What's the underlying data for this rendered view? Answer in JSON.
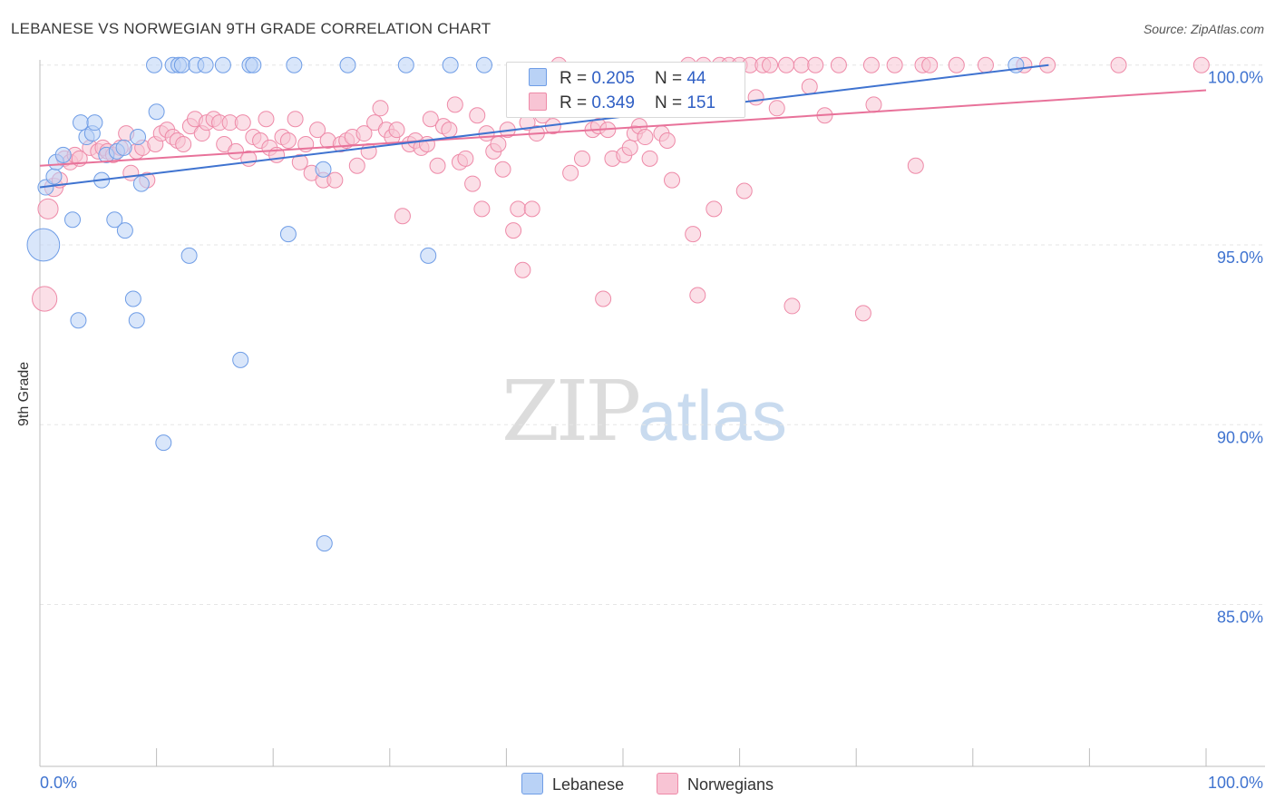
{
  "title": "LEBANESE VS NORWEGIAN 9TH GRADE CORRELATION CHART",
  "source": "Source: ZipAtlas.com",
  "watermark": {
    "part1": "ZIP",
    "part2": "atlas"
  },
  "colors": {
    "lebanese_fill": "#b9d2f6",
    "lebanese_stroke": "#6f9de6",
    "lebanese_line": "#3f73d0",
    "norwegian_fill": "#f8c4d4",
    "norwegian_stroke": "#ee8aa8",
    "norwegian_line": "#e8729a",
    "tick_label": "#3f73d0",
    "grid": "#e6e6e6"
  },
  "legend_top": {
    "rows": [
      {
        "r_label": "R =",
        "r_value": "0.205",
        "n_label": "N =",
        "n_value": "44"
      },
      {
        "r_label": "R =",
        "r_value": "0.349",
        "n_label": "N =",
        "n_value": "151"
      }
    ]
  },
  "legend_bottom": {
    "items": [
      "Lebanese",
      "Norwegians"
    ]
  },
  "chart_data": {
    "type": "scatter",
    "title": "LEBANESE VS NORWEGIAN 9TH GRADE CORRELATION CHART",
    "xlabel": "",
    "ylabel": "9th Grade",
    "xlim": [
      0,
      100
    ],
    "ylim": [
      80.5,
      100.8
    ],
    "x_tick_labels": [
      {
        "value": 0,
        "label": "0.0%"
      },
      {
        "value": 100,
        "label": "100.0%"
      }
    ],
    "y_tick_labels": [
      {
        "value": 100,
        "label": "100.0%"
      },
      {
        "value": 95,
        "label": "95.0%"
      },
      {
        "value": 90,
        "label": "90.0%"
      },
      {
        "value": 85,
        "label": "85.0%"
      }
    ],
    "grid": true,
    "legend_position": "top-center",
    "series": [
      {
        "name": "Lebanese",
        "r": 0.205,
        "n": 44,
        "trend": {
          "x": [
            0,
            86.5
          ],
          "y": [
            96.6,
            100.0
          ]
        },
        "points": [
          [
            0.3,
            95.0,
            2.1
          ],
          [
            0.5,
            96.6,
            1
          ],
          [
            1.2,
            96.9,
            1
          ],
          [
            1.4,
            97.3,
            1
          ],
          [
            2.0,
            97.5,
            1
          ],
          [
            2.8,
            95.7,
            1
          ],
          [
            3.3,
            92.9,
            1
          ],
          [
            3.5,
            98.4,
            1
          ],
          [
            4.0,
            98.0,
            1
          ],
          [
            4.5,
            98.1,
            1
          ],
          [
            4.7,
            98.4,
            1
          ],
          [
            5.3,
            96.8,
            1
          ],
          [
            5.7,
            97.5,
            1
          ],
          [
            6.4,
            95.7,
            1
          ],
          [
            6.6,
            97.6,
            1
          ],
          [
            7.2,
            97.7,
            1
          ],
          [
            7.3,
            95.4,
            1
          ],
          [
            8.0,
            93.5,
            1
          ],
          [
            8.3,
            92.9,
            1
          ],
          [
            8.4,
            98.0,
            1
          ],
          [
            8.7,
            96.7,
            1
          ],
          [
            9.8,
            100.0,
            1
          ],
          [
            10.0,
            98.7,
            1
          ],
          [
            10.6,
            89.5,
            1
          ],
          [
            11.4,
            100.0,
            1
          ],
          [
            11.9,
            100.0,
            1
          ],
          [
            12.2,
            100.0,
            1
          ],
          [
            12.8,
            94.7,
            1
          ],
          [
            13.4,
            100.0,
            1
          ],
          [
            14.2,
            100.0,
            1
          ],
          [
            15.7,
            100.0,
            1
          ],
          [
            17.2,
            91.8,
            1
          ],
          [
            18.0,
            100.0,
            1
          ],
          [
            18.3,
            100.0,
            1
          ],
          [
            21.3,
            95.3,
            1
          ],
          [
            21.8,
            100.0,
            1
          ],
          [
            24.3,
            97.1,
            1
          ],
          [
            24.4,
            86.7,
            1
          ],
          [
            26.4,
            100.0,
            1
          ],
          [
            31.4,
            100.0,
            1
          ],
          [
            33.3,
            94.7,
            1
          ],
          [
            35.2,
            100.0,
            1
          ],
          [
            38.1,
            100.0,
            1
          ],
          [
            83.7,
            100.0,
            1
          ]
        ]
      },
      {
        "name": "Norwegians",
        "r": 0.349,
        "n": 151,
        "trend": {
          "x": [
            0,
            100
          ],
          "y": [
            97.2,
            99.3
          ]
        },
        "points": [
          [
            0.4,
            93.5,
            1.6
          ],
          [
            0.7,
            96.0,
            1.3
          ],
          [
            1.2,
            96.6,
            1.2
          ],
          [
            1.7,
            96.8,
            1
          ],
          [
            2.1,
            97.4,
            1
          ],
          [
            2.6,
            97.3,
            1
          ],
          [
            3.0,
            97.5,
            1
          ],
          [
            3.4,
            97.4,
            1
          ],
          [
            4.3,
            97.7,
            1
          ],
          [
            5.0,
            97.6,
            1
          ],
          [
            5.4,
            97.7,
            1
          ],
          [
            5.8,
            97.6,
            1
          ],
          [
            6.3,
            97.5,
            1
          ],
          [
            6.9,
            97.7,
            1
          ],
          [
            7.4,
            98.1,
            1
          ],
          [
            7.8,
            97.0,
            1
          ],
          [
            8.3,
            97.6,
            1
          ],
          [
            8.8,
            97.7,
            1
          ],
          [
            9.2,
            96.8,
            1
          ],
          [
            9.9,
            97.8,
            1
          ],
          [
            10.4,
            98.1,
            1
          ],
          [
            10.9,
            98.2,
            1
          ],
          [
            11.4,
            98.0,
            1
          ],
          [
            11.8,
            97.9,
            1
          ],
          [
            12.3,
            97.8,
            1
          ],
          [
            12.9,
            98.3,
            1
          ],
          [
            13.3,
            98.5,
            1
          ],
          [
            13.9,
            98.1,
            1
          ],
          [
            14.3,
            98.4,
            1
          ],
          [
            14.9,
            98.5,
            1
          ],
          [
            15.4,
            98.4,
            1
          ],
          [
            15.8,
            97.8,
            1
          ],
          [
            16.3,
            98.4,
            1
          ],
          [
            16.8,
            97.6,
            1
          ],
          [
            17.4,
            98.4,
            1
          ],
          [
            17.9,
            97.4,
            1
          ],
          [
            18.3,
            98.0,
            1
          ],
          [
            18.9,
            97.9,
            1
          ],
          [
            19.4,
            98.5,
            1
          ],
          [
            19.7,
            97.7,
            1
          ],
          [
            20.3,
            97.5,
            1
          ],
          [
            20.8,
            98.0,
            1
          ],
          [
            21.3,
            97.9,
            1
          ],
          [
            21.9,
            98.5,
            1
          ],
          [
            22.3,
            97.3,
            1
          ],
          [
            22.8,
            97.8,
            1
          ],
          [
            23.3,
            97.0,
            1
          ],
          [
            23.8,
            98.2,
            1
          ],
          [
            24.3,
            96.8,
            1
          ],
          [
            24.7,
            97.9,
            1
          ],
          [
            25.3,
            96.8,
            1
          ],
          [
            25.8,
            97.8,
            1
          ],
          [
            26.3,
            97.9,
            1
          ],
          [
            26.8,
            98.0,
            1
          ],
          [
            27.2,
            97.2,
            1
          ],
          [
            27.8,
            98.1,
            1
          ],
          [
            28.2,
            97.6,
            1
          ],
          [
            28.7,
            98.4,
            1
          ],
          [
            29.2,
            98.8,
            1
          ],
          [
            29.7,
            98.2,
            1
          ],
          [
            30.2,
            98.0,
            1
          ],
          [
            30.6,
            98.2,
            1
          ],
          [
            31.1,
            95.8,
            1
          ],
          [
            31.7,
            97.8,
            1
          ],
          [
            32.2,
            97.9,
            1
          ],
          [
            32.7,
            97.7,
            1
          ],
          [
            33.2,
            97.8,
            1
          ],
          [
            33.5,
            98.5,
            1
          ],
          [
            34.1,
            97.2,
            1
          ],
          [
            34.6,
            98.3,
            1
          ],
          [
            35.1,
            98.2,
            1
          ],
          [
            35.6,
            98.9,
            1
          ],
          [
            36.0,
            97.3,
            1
          ],
          [
            36.5,
            97.4,
            1
          ],
          [
            37.1,
            96.7,
            1
          ],
          [
            37.5,
            98.6,
            1
          ],
          [
            37.9,
            96.0,
            1
          ],
          [
            38.3,
            98.1,
            1
          ],
          [
            38.9,
            97.6,
            1
          ],
          [
            39.3,
            97.8,
            1
          ],
          [
            39.7,
            97.1,
            1
          ],
          [
            40.1,
            98.2,
            1
          ],
          [
            40.6,
            95.4,
            1
          ],
          [
            41.0,
            96.0,
            1
          ],
          [
            41.4,
            94.3,
            1
          ],
          [
            41.8,
            98.4,
            1
          ],
          [
            42.2,
            96.0,
            1
          ],
          [
            42.6,
            98.1,
            1
          ],
          [
            43.1,
            98.6,
            1
          ],
          [
            43.5,
            98.9,
            1
          ],
          [
            44.0,
            98.3,
            1
          ],
          [
            44.5,
            100.0,
            1
          ],
          [
            45.0,
            99.1,
            1
          ],
          [
            45.5,
            97.0,
            1
          ],
          [
            45.9,
            99.4,
            1
          ],
          [
            46.5,
            97.4,
            1
          ],
          [
            46.9,
            98.8,
            1
          ],
          [
            47.4,
            98.2,
            1
          ],
          [
            47.9,
            98.3,
            1
          ],
          [
            48.3,
            93.5,
            1
          ],
          [
            48.7,
            98.2,
            1
          ],
          [
            49.1,
            97.4,
            1
          ],
          [
            49.6,
            99.3,
            1
          ],
          [
            50.1,
            97.5,
            1
          ],
          [
            50.6,
            97.7,
            1
          ],
          [
            51.0,
            98.1,
            1
          ],
          [
            51.4,
            98.3,
            1
          ],
          [
            51.9,
            98.0,
            1
          ],
          [
            52.3,
            97.4,
            1
          ],
          [
            52.8,
            99.5,
            1
          ],
          [
            53.3,
            98.1,
            1
          ],
          [
            53.8,
            97.9,
            1
          ],
          [
            54.2,
            96.8,
            1
          ],
          [
            54.7,
            98.9,
            1
          ],
          [
            55.1,
            99.2,
            1
          ],
          [
            55.6,
            100.0,
            1
          ],
          [
            56.0,
            95.3,
            1
          ],
          [
            56.4,
            93.6,
            1
          ],
          [
            56.9,
            100.0,
            1
          ],
          [
            57.3,
            99.0,
            1
          ],
          [
            57.8,
            96.0,
            1
          ],
          [
            58.3,
            100.0,
            1
          ],
          [
            58.6,
            99.3,
            1
          ],
          [
            59.1,
            100.0,
            1
          ],
          [
            60.0,
            100.0,
            1
          ],
          [
            60.4,
            96.5,
            1
          ],
          [
            60.9,
            100.0,
            1
          ],
          [
            61.4,
            99.1,
            1
          ],
          [
            62.0,
            100.0,
            1
          ],
          [
            62.6,
            100.0,
            1
          ],
          [
            63.2,
            98.8,
            1
          ],
          [
            64.0,
            100.0,
            1
          ],
          [
            64.5,
            93.3,
            1
          ],
          [
            65.3,
            100.0,
            1
          ],
          [
            66.5,
            100.0,
            1
          ],
          [
            67.3,
            98.6,
            1
          ],
          [
            68.5,
            100.0,
            1
          ],
          [
            70.6,
            93.1,
            1
          ],
          [
            71.3,
            100.0,
            1
          ],
          [
            73.3,
            100.0,
            1
          ],
          [
            75.1,
            97.2,
            1
          ],
          [
            75.7,
            100.0,
            1
          ],
          [
            76.3,
            100.0,
            1
          ],
          [
            78.6,
            100.0,
            1
          ],
          [
            81.1,
            100.0,
            1
          ],
          [
            84.4,
            100.0,
            1
          ],
          [
            86.4,
            100.0,
            1
          ],
          [
            92.5,
            100.0,
            1
          ],
          [
            99.6,
            100.0,
            1
          ],
          [
            71.5,
            98.9,
            1
          ],
          [
            66.0,
            99.4,
            1
          ]
        ]
      }
    ]
  }
}
